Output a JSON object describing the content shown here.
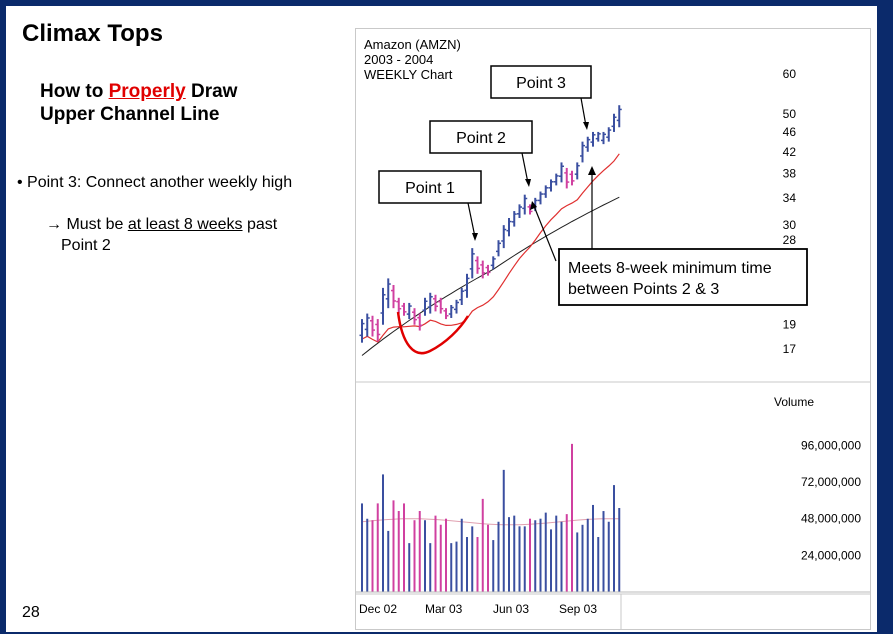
{
  "slide": {
    "title": "Climax Tops",
    "subtitle_line1_pre": "How to ",
    "subtitle_line1_red": "Properly",
    "subtitle_line1_post": " Draw",
    "subtitle_line2": "Upper Channel Line",
    "bullet": "• Point 3: Connect another weekly high",
    "sub_arrow": "→",
    "sub_pre": " Must be ",
    "sub_u": "at least 8 weeks",
    "sub_post": " past",
    "sub_line2": "Point 2",
    "page_number": "28"
  },
  "chart_data": {
    "type": "ohlc",
    "stock_label_line1": "Amazon (AMZN)",
    "stock_label_line2": "2003 - 2004",
    "stock_label_line3": "WEEKLY Chart",
    "price_ticks": [
      "60",
      "50",
      "46",
      "42",
      "38",
      "34",
      "30",
      "28",
      "19",
      "17"
    ],
    "x_ticks": [
      "Dec 02",
      "Mar 03",
      "Jun 03",
      "Sep 03"
    ],
    "volume_label": "Volume",
    "volume_ticks": [
      "96,000,000",
      "72,000,000",
      "48,000,000",
      "24,000,000"
    ],
    "annotations": {
      "point1": "Point 1",
      "point2": "Point 2",
      "point3": "Point 3",
      "note_line1": "Meets 8-week minimum time",
      "note_line2": "between Points 2 & 3"
    },
    "colors": {
      "up": "#3a4fa0",
      "down": "#d040a0",
      "ma_short": "#e03030",
      "ma_long": "#202020",
      "annotation": "#e00000"
    },
    "weekly_highs": [
      19.5,
      20,
      19.8,
      19.5,
      22.5,
      23.5,
      22.8,
      21.5,
      21,
      21,
      20.5,
      20,
      21.5,
      22,
      21.8,
      21.5,
      20.5,
      20.8,
      21.3,
      22.5,
      24,
      27,
      26,
      25.5,
      25,
      26,
      28,
      30,
      31,
      32,
      33,
      34.5,
      33,
      34,
      35,
      36,
      37,
      38,
      40,
      39,
      38.5,
      40,
      44,
      45,
      46,
      46,
      46,
      47,
      50,
      52
    ],
    "weekly_lows": [
      17.5,
      18,
      18,
      17.6,
      19,
      20.5,
      20.5,
      20,
      19.8,
      19.5,
      19,
      18.5,
      19.8,
      20,
      20.2,
      20,
      19.5,
      19.6,
      20,
      20.8,
      21.5,
      23.5,
      24,
      23.5,
      23.8,
      24.5,
      26,
      27,
      28.5,
      29.8,
      31,
      31.5,
      31.5,
      32,
      33,
      34,
      35,
      36,
      36.5,
      35.5,
      36,
      37,
      40,
      42,
      43,
      44,
      43.5,
      44,
      46,
      47
    ],
    "volumes": [
      58,
      48,
      47,
      58,
      77,
      40,
      60,
      53,
      58,
      32,
      47,
      53,
      47,
      32,
      50,
      44,
      48,
      32,
      33,
      48,
      36,
      43,
      36,
      61,
      44,
      34,
      46,
      80,
      49,
      50,
      43,
      43,
      48,
      47,
      48,
      52,
      41,
      50,
      46,
      51,
      97,
      39,
      44,
      48,
      57,
      36,
      53,
      46,
      70,
      55
    ]
  }
}
